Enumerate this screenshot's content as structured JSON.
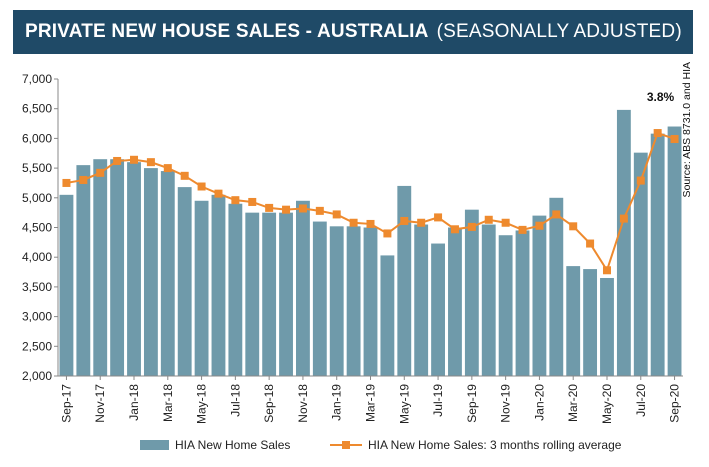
{
  "title": {
    "main": "PRIVATE NEW HOUSE SALES -  AUSTRALIA",
    "sub": "(SEASONALLY ADJUSTED)"
  },
  "colors": {
    "title_bg": "#1f4a67",
    "bar": "#6f9aaa",
    "line": "#ee8a2e",
    "axis": "#888888"
  },
  "chart_data": {
    "type": "bar",
    "title": "PRIVATE NEW HOUSE SALES - AUSTRALIA (SEASONALLY ADJUSTED)",
    "xlabel": "",
    "ylabel": "",
    "ylim": [
      2000,
      7000
    ],
    "yticks": [
      2000,
      2500,
      3000,
      3500,
      4000,
      4500,
      5000,
      5500,
      6000,
      6500,
      7000
    ],
    "ytick_labels": [
      "2,000",
      "2,500",
      "3,000",
      "3,500",
      "4,000",
      "4,500",
      "5,000",
      "5,500",
      "6,000",
      "6,500",
      "7,000"
    ],
    "categories": [
      "Sep-17",
      "Oct-17",
      "Nov-17",
      "Dec-17",
      "Jan-18",
      "Feb-18",
      "Mar-18",
      "Apr-18",
      "May-18",
      "Jun-18",
      "Jul-18",
      "Aug-18",
      "Sep-18",
      "Oct-18",
      "Nov-18",
      "Dec-18",
      "Jan-19",
      "Feb-19",
      "Mar-19",
      "Apr-19",
      "May-19",
      "Jun-19",
      "Jul-19",
      "Aug-19",
      "Sep-19",
      "Oct-19",
      "Nov-19",
      "Dec-19",
      "Jan-20",
      "Feb-20",
      "Mar-20",
      "Apr-20",
      "May-20",
      "Jun-20",
      "Jul-20",
      "Aug-20",
      "Sep-20"
    ],
    "xtick_labels": [
      "Sep-17",
      "Nov-17",
      "Jan-18",
      "Mar-18",
      "May-18",
      "Jul-18",
      "Sep-18",
      "Nov-18",
      "Jan-19",
      "Mar-19",
      "May-19",
      "Jul-19",
      "Sep-19",
      "Nov-19",
      "Jan-20",
      "Mar-20",
      "May-20",
      "Jul-20",
      "Sep-20"
    ],
    "series": [
      {
        "name": "HIA New Home Sales",
        "type": "bar",
        "values": [
          5050,
          5550,
          5650,
          5650,
          5600,
          5500,
          5450,
          5180,
          4950,
          5050,
          4900,
          4750,
          4750,
          4750,
          4950,
          4600,
          4520,
          4520,
          4500,
          4030,
          5200,
          4550,
          4230,
          4500,
          4800,
          4550,
          4370,
          4450,
          4700,
          5000,
          3850,
          3800,
          3650,
          6480,
          5760,
          6080,
          6200
        ]
      },
      {
        "name": "HIA New Home Sales: 3 months rolling average",
        "type": "line",
        "values": [
          5250,
          5300,
          5420,
          5620,
          5640,
          5600,
          5500,
          5370,
          5190,
          5070,
          4960,
          4930,
          4830,
          4800,
          4820,
          4780,
          4720,
          4580,
          4560,
          4400,
          4610,
          4580,
          4670,
          4470,
          4510,
          4630,
          4580,
          4460,
          4530,
          4720,
          4520,
          4230,
          3780,
          4650,
          5290,
          6090,
          5990
        ]
      }
    ],
    "annotations": [
      {
        "text": "3.8%",
        "category": "Sep-20"
      }
    ],
    "legend": {
      "position": "bottom",
      "entries": [
        "HIA New Home Sales",
        "HIA New Home Sales: 3 months rolling average"
      ]
    },
    "source": "Source: ABS 8731.0 and HIA",
    "grid": false
  }
}
